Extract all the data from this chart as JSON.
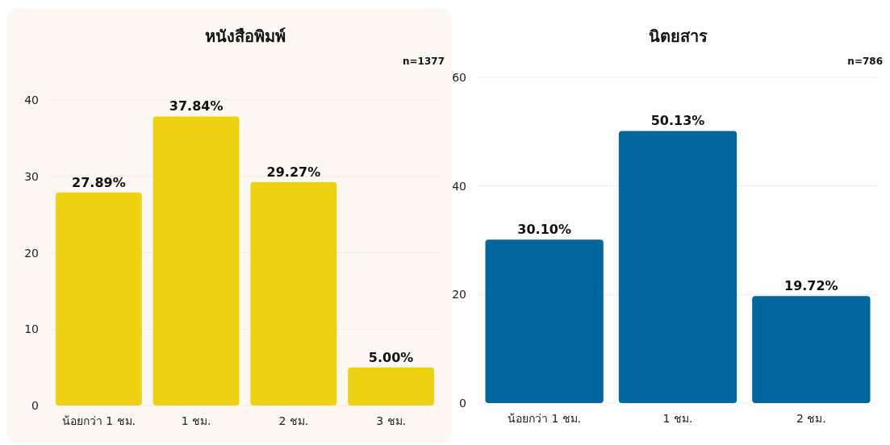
{
  "chart_data": [
    {
      "type": "bar",
      "title": "หนังสือพิมพ์",
      "annotations": [
        "n=1377"
      ],
      "categories": [
        "น้อยกว่า 1 ชม.",
        "1 ชม.",
        "2 ชม.",
        "3 ชม."
      ],
      "values": [
        27.89,
        37.84,
        29.27,
        5.0
      ],
      "value_labels": [
        "27.89%",
        "37.84%",
        "29.27%",
        "5.00%"
      ],
      "color": "#eed211",
      "ylim": [
        0,
        40
      ],
      "yticks": [
        0,
        10,
        20,
        30,
        40
      ],
      "grid": "y"
    },
    {
      "type": "bar",
      "title": "นิตยสาร",
      "annotations": [
        "n=786"
      ],
      "categories": [
        "น้อยกว่า 1 ชม.",
        "1 ชม.",
        "2 ชม."
      ],
      "values": [
        30.1,
        50.13,
        19.72
      ],
      "value_labels": [
        "30.10%",
        "50.13%",
        "19.72%"
      ],
      "color": "#00679e",
      "ylim": [
        0,
        60
      ],
      "yticks": [
        0,
        20,
        40,
        60
      ],
      "grid": "y"
    }
  ]
}
